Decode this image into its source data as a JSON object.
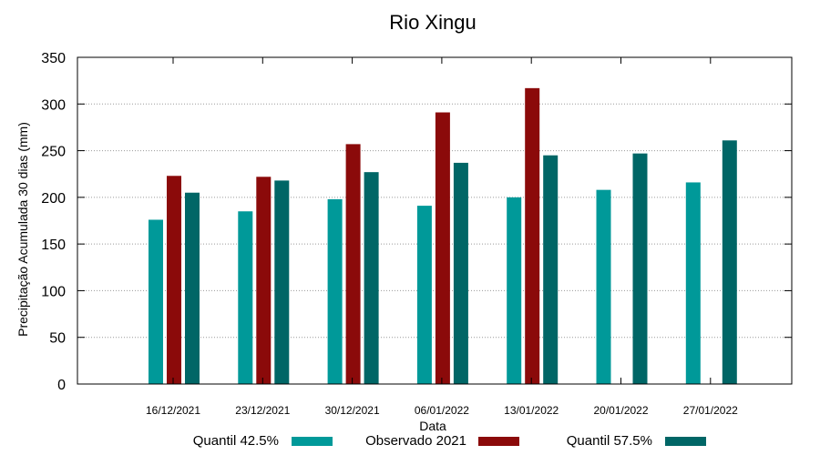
{
  "chart_data": {
    "type": "bar",
    "title": "Rio Xingu",
    "xlabel": "Data",
    "ylabel": "Precipitação Acumulada 30 dias (mm)",
    "ylim": [
      0,
      350
    ],
    "yticks": [
      0,
      50,
      100,
      150,
      200,
      250,
      300,
      350
    ],
    "grid": "horizontal dotted",
    "legend_position": "bottom",
    "categories": [
      "16/12/2021",
      "23/12/2021",
      "30/12/2021",
      "06/01/2022",
      "13/01/2022",
      "20/01/2022",
      "27/01/2022"
    ],
    "series": [
      {
        "name": "Quantil 42.5%",
        "color": "#009999",
        "values": [
          176,
          185,
          198,
          191,
          200,
          208,
          216
        ]
      },
      {
        "name": "Observado 2021",
        "color": "#8B0A0A",
        "values": [
          223,
          222,
          257,
          291,
          317,
          null,
          null
        ]
      },
      {
        "name": "Quantil 57.5%",
        "color": "#006666",
        "values": [
          205,
          218,
          227,
          237,
          245,
          247,
          261
        ]
      }
    ]
  }
}
